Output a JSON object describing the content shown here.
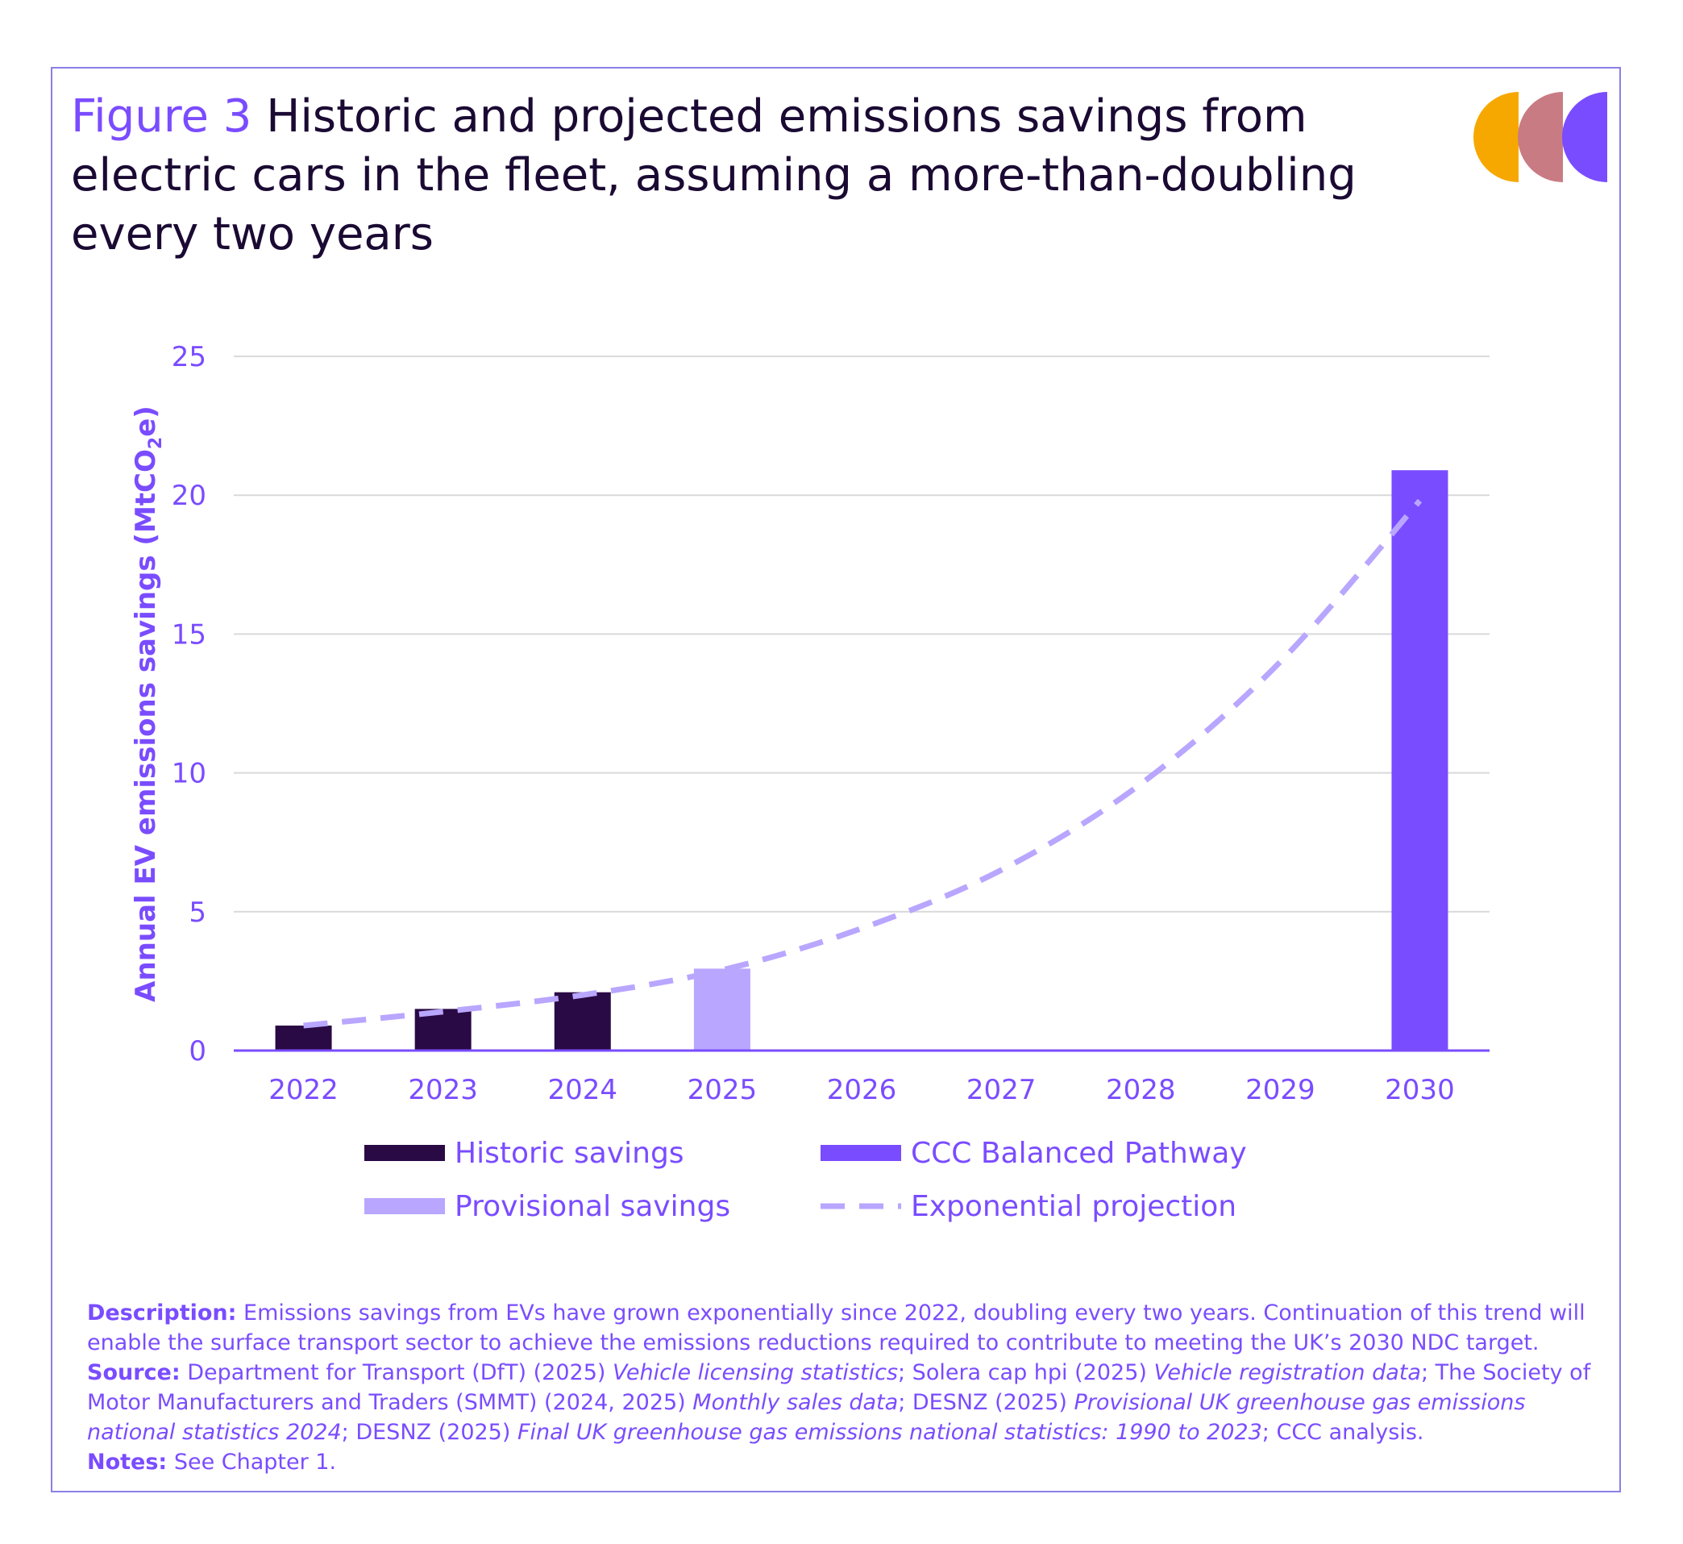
{
  "figure": {
    "label": "Figure 3",
    "title": "Historic and projected emissions savings from electric cars in the fleet, assuming a more-than-doubling every two years"
  },
  "colors": {
    "historic": "#2a0a45",
    "provisional": "#b9a6ff",
    "ccc": "#7a4cff",
    "projection": "#b9a6ff",
    "text": "#7a4cff",
    "grid": "#d9d9d9",
    "logo": [
      "#f7a800",
      "#c97b84",
      "#7a4cff"
    ]
  },
  "chart_data": {
    "type": "bar",
    "categories": [
      "2022",
      "2023",
      "2024",
      "2025",
      "2026",
      "2027",
      "2028",
      "2029",
      "2030"
    ],
    "ylabel": "Annual EV emissions savings (MtCO2e)",
    "ylim": [
      0,
      25
    ],
    "yticks": [
      "0",
      "5",
      "10",
      "15",
      "20",
      "25"
    ],
    "series": [
      {
        "name": "Historic savings",
        "style": "bar",
        "values": [
          0.9,
          1.5,
          2.1,
          null,
          null,
          null,
          null,
          null,
          null
        ]
      },
      {
        "name": "Provisional savings",
        "style": "bar",
        "values": [
          null,
          null,
          null,
          2.95,
          null,
          null,
          null,
          null,
          null
        ]
      },
      {
        "name": "CCC Balanced Pathway",
        "style": "bar",
        "values": [
          null,
          null,
          null,
          null,
          null,
          null,
          null,
          null,
          20.9
        ]
      },
      {
        "name": "Exponential projection",
        "style": "dashed-line",
        "values": [
          0.9,
          1.4,
          2.0,
          2.9,
          4.4,
          6.5,
          9.6,
          14.0,
          19.8
        ]
      }
    ],
    "legend": [
      "Historic savings",
      "CCC Balanced Pathway",
      "Provisional savings",
      "Exponential projection"
    ],
    "grid": true
  },
  "description": {
    "description_label": "Description:",
    "description_text": "Emissions savings from EVs have grown exponentially since 2022, doubling every two years. Continuation of this trend will enable the surface transport sector to achieve the emissions reductions required to contribute to meeting the UK’s 2030 NDC target.",
    "source_label": "Source:",
    "source_parts": [
      {
        "t": "Department for Transport (DfT) (2025) ",
        "i": false
      },
      {
        "t": "Vehicle licensing statistics",
        "i": true
      },
      {
        "t": "; Solera cap hpi (2025) ",
        "i": false
      },
      {
        "t": "Vehicle registration data",
        "i": true
      },
      {
        "t": "; The Society of Motor Manufacturers and Traders (SMMT) (2024, 2025) ",
        "i": false
      },
      {
        "t": "Monthly sales data",
        "i": true
      },
      {
        "t": "; DESNZ (2025) ",
        "i": false
      },
      {
        "t": "Provisional UK greenhouse gas emissions national statistics 2024",
        "i": true
      },
      {
        "t": "; DESNZ (2025) ",
        "i": false
      },
      {
        "t": "Final UK greenhouse gas emissions national statistics: 1990 to 2023",
        "i": true
      },
      {
        "t": "; CCC analysis.",
        "i": false
      }
    ],
    "notes_label": "Notes:",
    "notes_text": "See Chapter 1."
  }
}
